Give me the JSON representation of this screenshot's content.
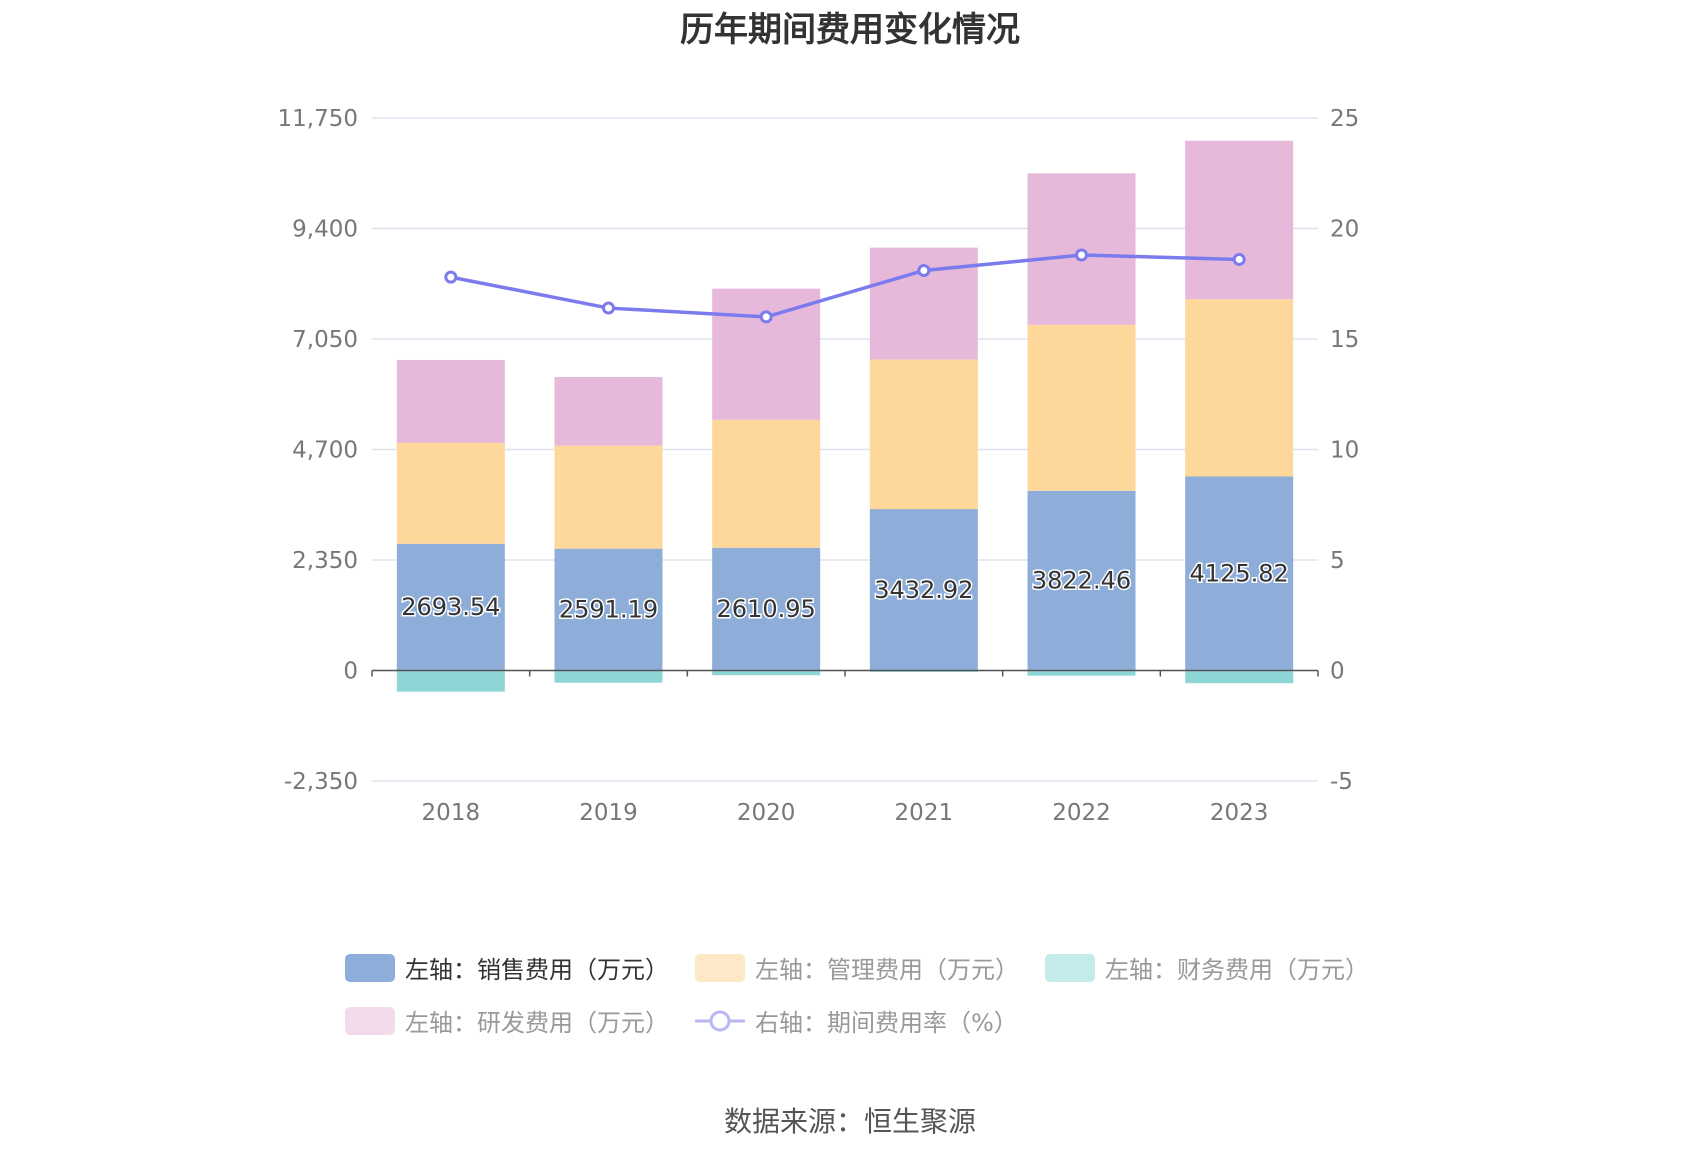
{
  "title": "历年期间费用变化情况",
  "source": "数据来源：恒生聚源",
  "colors": {
    "sales": "#8eaed9",
    "admin": "#fdd89a",
    "finance": "#8ed6d6",
    "rnd": "#e6b8da",
    "rate": "#7b7bed",
    "grid": "#dde3ee",
    "axis": "#555555"
  },
  "legend": [
    {
      "label": "左轴：销售费用（万元）",
      "active": true
    },
    {
      "label": "左轴：管理费用（万元）",
      "active": false
    },
    {
      "label": "左轴：财务费用（万元）",
      "active": false
    },
    {
      "label": "左轴：研发费用（万元）",
      "active": false
    },
    {
      "label": "右轴：期间费用率（%）",
      "active": false
    }
  ],
  "chart_data": {
    "type": "bar",
    "stacked": true,
    "categories": [
      "2018",
      "2019",
      "2020",
      "2021",
      "2022",
      "2023"
    ],
    "series": [
      {
        "name": "左轴：销售费用（万元）",
        "axis": "left",
        "values": [
          2693.54,
          2591.19,
          2610.95,
          3432.92,
          3822.46,
          4125.82
        ],
        "labels": [
          "2693.54",
          "2591.19",
          "2610.95",
          "3432.92",
          "3822.46",
          "4125.82"
        ]
      },
      {
        "name": "左轴：管理费用（万元）",
        "axis": "left",
        "values": [
          2150,
          2190,
          2720,
          3180,
          3530,
          3770
        ]
      },
      {
        "name": "左轴：财务费用（万元）",
        "axis": "left",
        "values": [
          -450,
          -260,
          -100,
          -30,
          -110,
          -270
        ]
      },
      {
        "name": "左轴：研发费用（万元）",
        "axis": "left",
        "values": [
          1760,
          1460,
          2790,
          2380,
          3220,
          3370
        ]
      },
      {
        "name": "右轴：期间费用率（%）",
        "axis": "right",
        "type": "line",
        "values": [
          17.8,
          16.4,
          16.0,
          18.1,
          18.8,
          18.6
        ]
      }
    ],
    "left_axis": {
      "min": -2350,
      "max": 11750,
      "ticks": [
        "-2,350",
        "0",
        "2,350",
        "4,700",
        "7,050",
        "9,400",
        "11,750"
      ]
    },
    "right_axis": {
      "min": -5,
      "max": 25,
      "ticks": [
        "-5",
        "0",
        "5",
        "10",
        "15",
        "20",
        "25"
      ]
    },
    "grid": true,
    "legend_position": "bottom"
  }
}
